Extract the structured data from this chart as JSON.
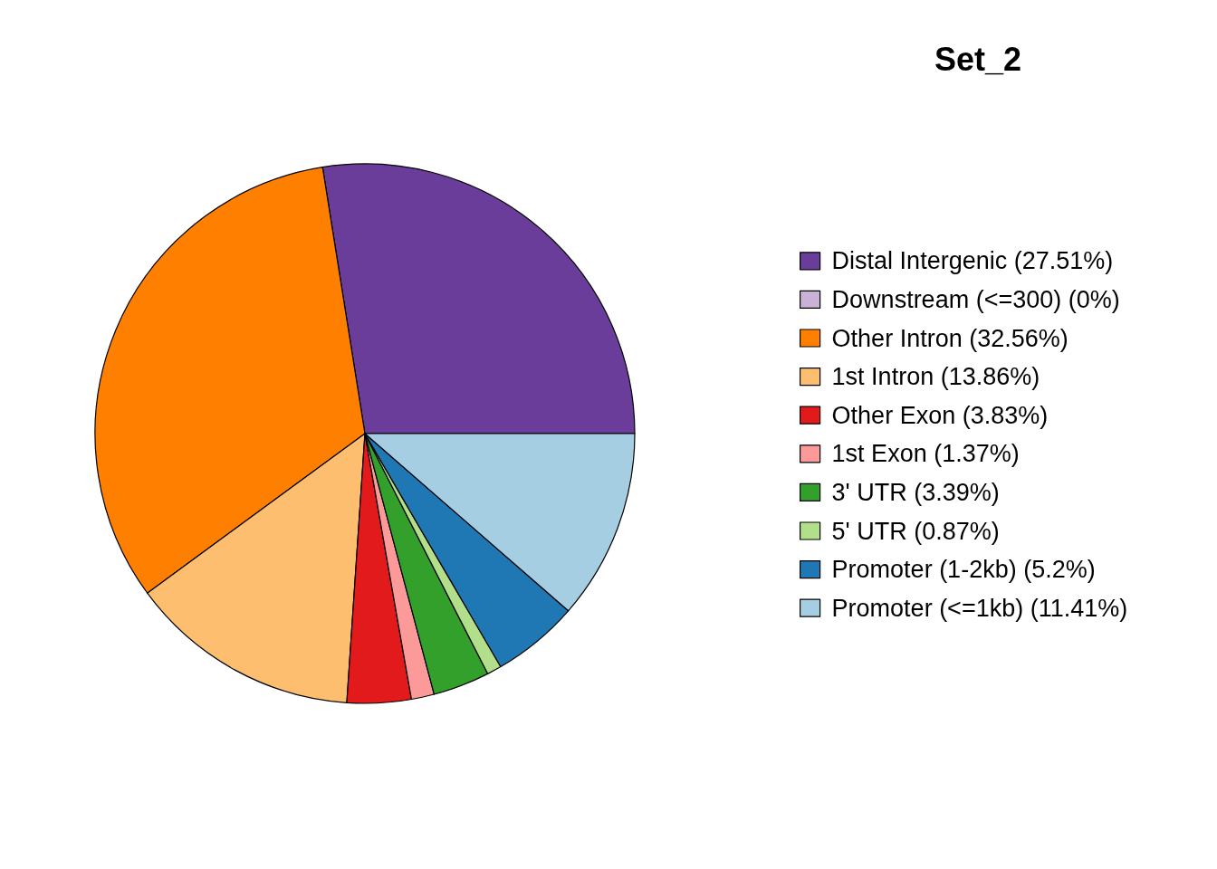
{
  "chart_data": {
    "type": "pie",
    "title": "Set_2",
    "categories": [
      "Distal Intergenic (27.51%)",
      "Downstream (<=300) (0%)",
      "Other Intron (32.56%)",
      "1st Intron (13.86%)",
      "Other Exon (3.83%)",
      "1st Exon (1.37%)",
      "3' UTR (3.39%)",
      "5' UTR (0.87%)",
      "Promoter (1-2kb) (5.2%)",
      "Promoter (<=1kb) (11.41%)"
    ],
    "values": [
      27.51,
      0,
      32.56,
      13.86,
      3.83,
      1.37,
      3.39,
      0.87,
      5.2,
      11.41
    ],
    "colors": [
      "#6a3d9a",
      "#cab2d6",
      "#ff7f00",
      "#fdbf6f",
      "#e31a1c",
      "#fb9a99",
      "#33a02c",
      "#b2df8a",
      "#1f78b4",
      "#a6cee3"
    ],
    "legend": "right"
  }
}
